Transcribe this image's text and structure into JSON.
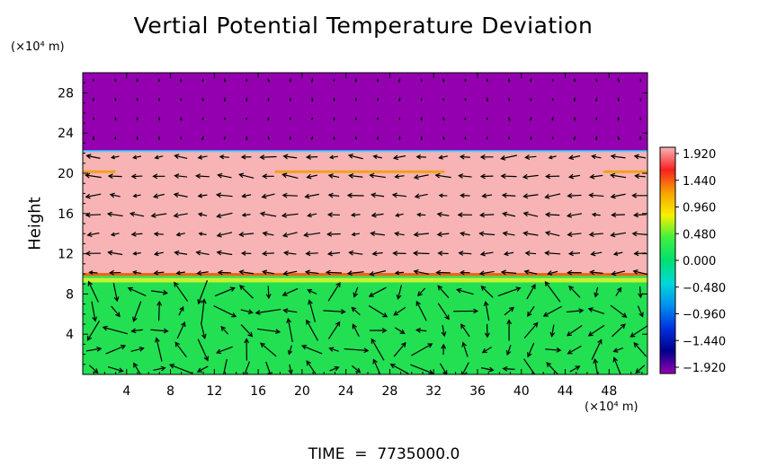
{
  "chart_data": {
    "type": "heatmap",
    "title": "Vertial Potential Temperature Deviation",
    "ylabel": "Height",
    "y_unit": "(×10⁴ m)",
    "x_unit": "(×10⁴ m)",
    "footer": "TIME  =  7735000.0",
    "xlim": [
      0,
      51.5
    ],
    "ylim": [
      0,
      30
    ],
    "x_ticks": [
      4,
      8,
      12,
      16,
      20,
      24,
      28,
      32,
      36,
      40,
      44,
      48
    ],
    "y_ticks": [
      4,
      8,
      12,
      16,
      20,
      24,
      28
    ],
    "layers": [
      {
        "from": 22.2,
        "to": 30.0,
        "value": -1.92,
        "color": "#9400b0"
      },
      {
        "from": 9.8,
        "to": 22.2,
        "value": 1.92,
        "color": "#f8b4b4"
      },
      {
        "from": 0.0,
        "to": 9.8,
        "value": 0.2,
        "color": "#22e052"
      }
    ],
    "colorbar": {
      "labels": [
        "1.920",
        "1.440",
        "0.960",
        "0.480",
        "0.000",
        "−0.480",
        "−0.960",
        "−1.440",
        "−1.920"
      ],
      "min": -1.92,
      "max": 1.92,
      "colors_top_to_bottom": [
        "#f8b4b4",
        "#f82020",
        "#f8a000",
        "#f8f000",
        "#40f040",
        "#00e070",
        "#00d8d8",
        "#0090f0",
        "#0030e0",
        "#00008c",
        "#9400b0"
      ]
    },
    "vectors": "wind arrows overlaid on the field"
  }
}
